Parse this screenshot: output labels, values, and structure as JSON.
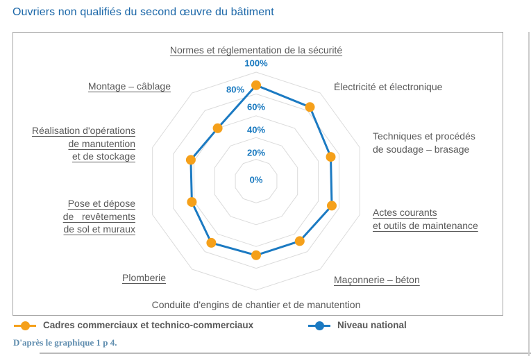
{
  "page": {
    "title": "Ouvriers non qualifiés du second œuvre du bâtiment",
    "caption": "D'après le graphique 1 p 4."
  },
  "colors": {
    "title": "#1b67a8",
    "category_text": "#595959",
    "tick_text": "#1778bf",
    "grid": "#dbdbdb",
    "box_border": "#a6a6a6",
    "series_cadres_orange": "#F5A01A",
    "series_national_blue": "#1B7AC2",
    "caption_blue": "#5e8cae"
  },
  "legend": {
    "items": [
      {
        "label": "Cadres commerciaux et technico-commerciaux",
        "color": "#F5A01A",
        "marker": "line-dot"
      },
      {
        "label": "Niveau national",
        "color": "#1B7AC2",
        "marker": "line-dot"
      }
    ]
  },
  "chart_data": {
    "type": "radar",
    "title": "Ouvriers non qualifiés du second œuvre du bâtiment",
    "rmin": 0,
    "rmax": 100,
    "tick_interval": 20,
    "tick_labels": [
      "0%",
      "20%",
      "40%",
      "60%",
      "80%",
      "100%"
    ],
    "grid": "concentric-decagons",
    "legend_position": "bottom",
    "categories": [
      {
        "label": "Normes et réglementation de la sécurité",
        "lines": [
          "Normes et réglementation de la sécurité"
        ],
        "underline": true
      },
      {
        "label": "Électricité et électronique",
        "lines": [
          "Électricité et électronique"
        ],
        "underline": false
      },
      {
        "label": "Techniques et procédés de soudage – brasage",
        "lines": [
          "Techniques et procédés",
          "de soudage – brasage"
        ],
        "underline": false
      },
      {
        "label": "Actes courants et outils de maintenance",
        "lines": [
          "Actes courants",
          "et outils de maintenance"
        ],
        "underline": true
      },
      {
        "label": "Maçonnerie – béton",
        "lines": [
          "Maçonnerie – béton"
        ],
        "underline": true
      },
      {
        "label": "Conduite d'engins de chantier et de manutention",
        "lines": [
          "Conduite d'engins de chantier et de manutention"
        ],
        "underline": false
      },
      {
        "label": "Plomberie",
        "lines": [
          "Plomberie"
        ],
        "underline": true
      },
      {
        "label": "Pose et dépose de revêtements de sol et muraux",
        "lines": [
          "Pose et dépose",
          "de  revêtements",
          "de sol et muraux"
        ],
        "underline": true
      },
      {
        "label": "Réalisation d'opérations de manutention et de stockage",
        "lines": [
          "Réalisation d'opérations",
          "de manutention",
          "et de stockage"
        ],
        "underline": true
      },
      {
        "label": "Montage – câblage",
        "lines": [
          "Montage – câblage"
        ],
        "underline": true
      }
    ],
    "series": [
      {
        "name": "Cadres commerciaux et technico-commerciaux",
        "color": "#F5A01A",
        "style": "markers",
        "values": [
          88,
          84,
          72,
          73,
          68,
          68,
          70,
          62,
          63,
          60
        ]
      },
      {
        "name": "Niveau national",
        "color": "#1B7AC2",
        "style": "line",
        "values": [
          88,
          84,
          72,
          73,
          68,
          68,
          70,
          62,
          63,
          60
        ]
      }
    ]
  }
}
